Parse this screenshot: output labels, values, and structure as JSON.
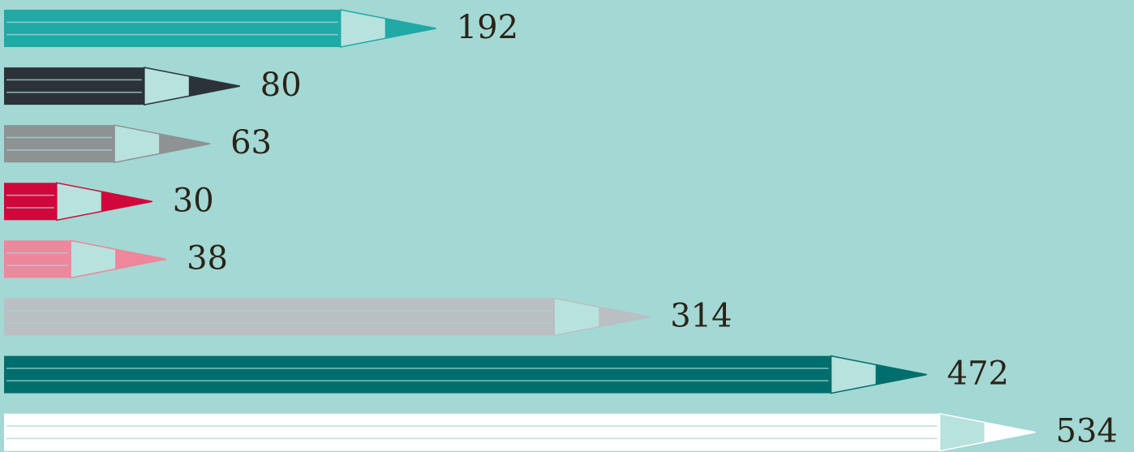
{
  "chart_data": {
    "type": "bar",
    "values": [
      192,
      80,
      63,
      30,
      38,
      314,
      472,
      534
    ],
    "colors": [
      "#20a9a5",
      "#2b3339",
      "#8e9293",
      "#d1063a",
      "#ec879c",
      "#b9bfc3",
      "#006e6c",
      "#ffffff"
    ],
    "background": "#a3d8d4"
  }
}
